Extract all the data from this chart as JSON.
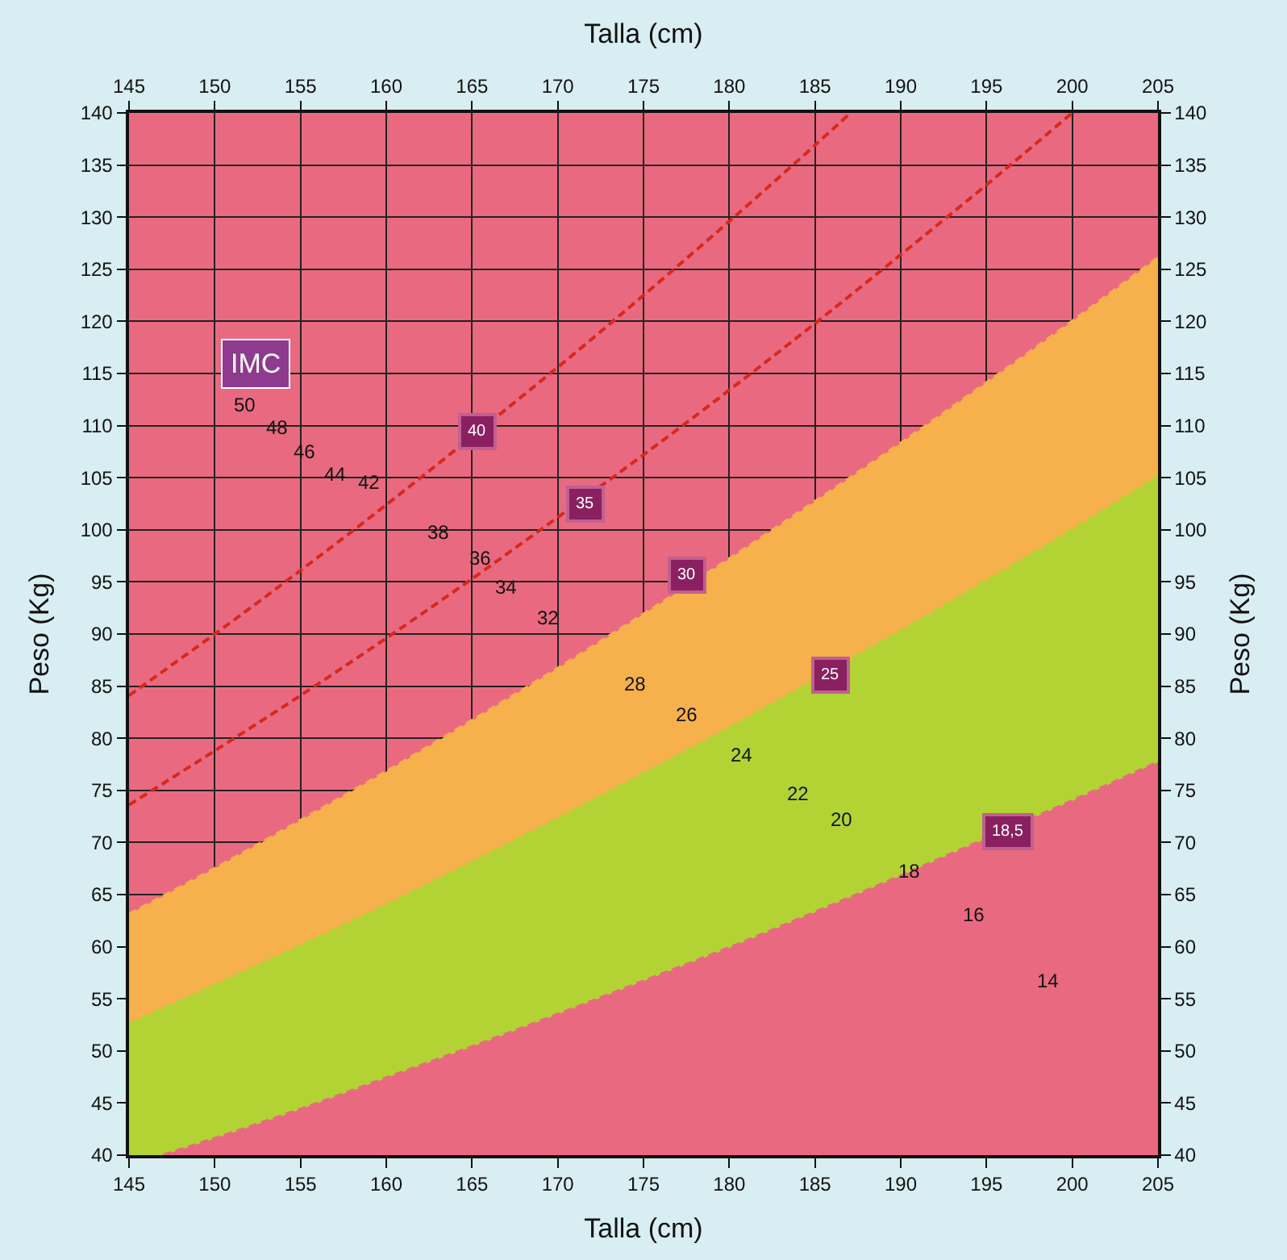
{
  "chart_data": {
    "type": "line",
    "xlabel": "Talla (cm)",
    "x2label": "Talla (cm)",
    "ylabel": "Peso (Kg)",
    "y2label": "Peso (Kg)",
    "xlim": [
      145,
      205
    ],
    "xticks": [
      145,
      150,
      155,
      160,
      165,
      170,
      175,
      180,
      185,
      190,
      195,
      200,
      205
    ],
    "x2lim": [
      145,
      205
    ],
    "x2ticks": [
      145,
      150,
      155,
      160,
      165,
      170,
      175,
      180,
      185,
      190,
      195,
      200,
      205
    ],
    "ylim": [
      40,
      140
    ],
    "yticks": [
      40,
      45,
      50,
      55,
      60,
      65,
      70,
      75,
      80,
      85,
      90,
      95,
      100,
      105,
      110,
      115,
      120,
      125,
      130,
      135,
      140
    ],
    "y2lim": [
      40,
      140
    ],
    "y2ticks": [
      40,
      45,
      50,
      55,
      60,
      65,
      70,
      75,
      80,
      85,
      90,
      95,
      100,
      105,
      110,
      115,
      120,
      125,
      130,
      135,
      140
    ],
    "grid": true,
    "marker": "none",
    "line_style": "dashed",
    "bands": [
      {
        "axis": "y",
        "from": 40,
        "to": 140,
        "color": "#e96a80"
      }
    ],
    "series": [
      {
        "type": "area",
        "color": "#f6b04c",
        "x": [
          145,
          150,
          155,
          160,
          165,
          170,
          175,
          180,
          185,
          190,
          195,
          200,
          205
        ],
        "values": [
          63.1,
          67.5,
          72.1,
          76.8,
          81.7,
          86.7,
          91.9,
          97.2,
          102.7,
          108.3,
          114.1,
          120.0,
          126.1
        ]
      },
      {
        "type": "area",
        "color": "#b3d335",
        "x": [
          145,
          150,
          155,
          160,
          165,
          170,
          175,
          180,
          190,
          195,
          200,
          205
        ],
        "values": [
          52.6,
          56.3,
          60.1,
          64.0,
          68.1,
          72.3,
          76.6,
          81.0,
          90.3,
          95.1,
          100.0,
          105.1
        ]
      },
      {
        "type": "area",
        "color": "#e96a80",
        "x": [
          147,
          150,
          155,
          160,
          165,
          170,
          175,
          180,
          185,
          190,
          200,
          205
        ],
        "values": [
          40.0,
          41.6,
          44.4,
          47.4,
          50.4,
          53.5,
          56.7,
          59.9,
          63.3,
          66.8,
          74.0,
          77.7
        ]
      },
      {
        "color": "#d8281c",
        "x": [
          145,
          150,
          155,
          160,
          165,
          170,
          175,
          180,
          185,
          190,
          195,
          200
        ],
        "values": [
          73.6,
          78.8,
          84.1,
          89.6,
          95.3,
          101.2,
          107.2,
          113.4,
          119.8,
          126.4,
          133.1,
          140.0
        ]
      },
      {
        "color": "#d8281c",
        "x": [
          145,
          150,
          155,
          160,
          170,
          175,
          180,
          185,
          187
        ],
        "values": [
          84.1,
          90.0,
          96.1,
          102.4,
          115.6,
          122.5,
          129.6,
          136.9,
          139.9
        ]
      }
    ],
    "annotations": [
      "IMC",
      "50",
      "48",
      "46",
      "44",
      "42",
      "38",
      "36",
      "34",
      "32",
      "28",
      "26",
      "24",
      "22",
      "20",
      "18",
      "16",
      "14",
      {
        "text": "40",
        "x": 165.3,
        "y": 109.4
      },
      {
        "text": "35",
        "x": 171.6,
        "y": 102.4
      },
      {
        "text": "30",
        "x": 177.5,
        "y": 95.6
      },
      {
        "text": "25",
        "x": 185.9,
        "y": 86.0
      },
      {
        "text": "18,5",
        "x": 196.3,
        "y": 71.0
      }
    ]
  }
}
